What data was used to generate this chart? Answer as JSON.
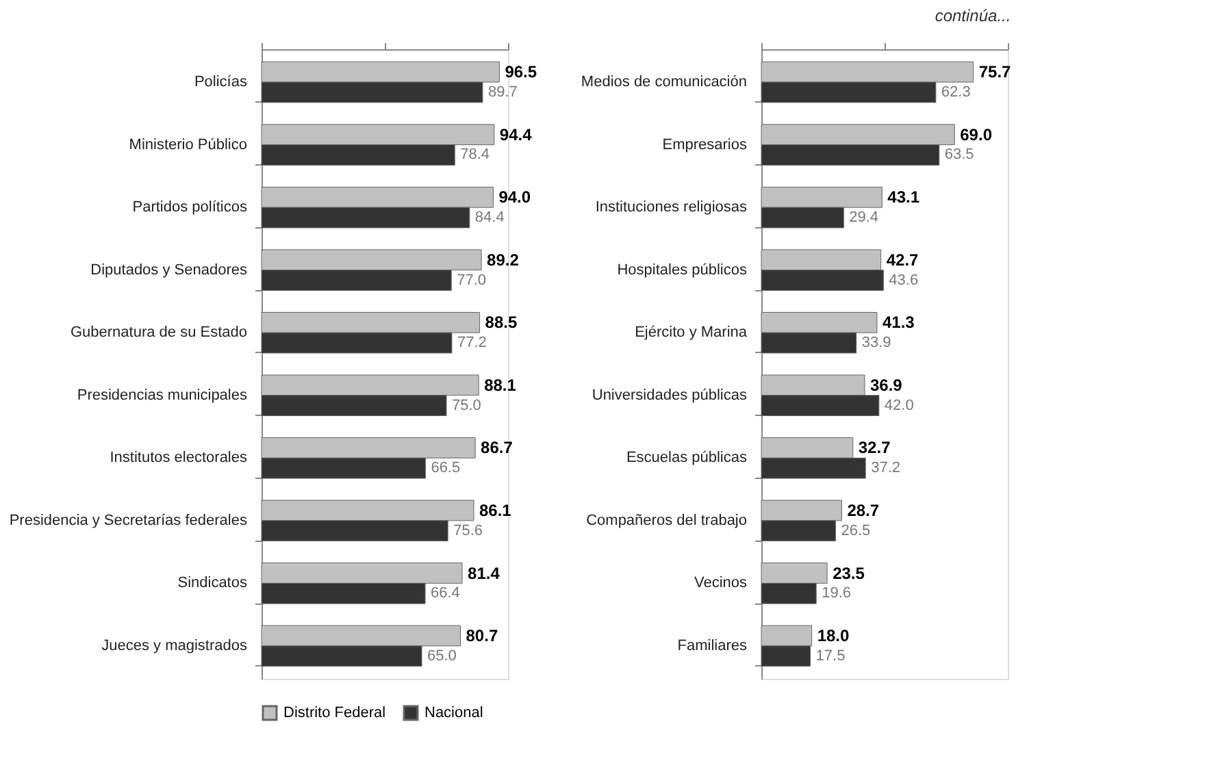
{
  "chart_data": [
    {
      "type": "bar",
      "orientation": "horizontal",
      "categories": [
        "Policías",
        "Ministerio Público",
        "Partidos políticos",
        "Diputados y Senadores",
        "Gubernatura de su Estado",
        "Presidencias municipales",
        "Institutos electorales",
        "Presidencia y Secretarías federales",
        "Sindicatos",
        "Jueces y magistrados"
      ],
      "series": [
        {
          "name": "Distrito Federal",
          "color": "#c0c0c0",
          "values": [
            96.5,
            94.4,
            94.0,
            89.2,
            88.5,
            88.1,
            86.7,
            86.1,
            81.4,
            80.7
          ],
          "value_labels": [
            "96.5",
            "94.4",
            "94.0",
            "89.2",
            "88.5",
            "88.1",
            "86.7",
            "86.1",
            "81.4",
            "80.7"
          ]
        },
        {
          "name": "Nacional",
          "color": "#333333",
          "values": [
            89.7,
            78.4,
            84.4,
            77.0,
            77.2,
            75.0,
            66.5,
            75.6,
            66.4,
            65.0
          ],
          "value_labels": [
            "89.7",
            "78.4",
            "84.4",
            "77.0",
            "77.2",
            "75.0",
            "66.5",
            "75.6",
            "66.4",
            "65.0"
          ]
        }
      ],
      "xlim": [
        0,
        100
      ],
      "tick_labels": "y",
      "legend": "bottom"
    },
    {
      "type": "bar",
      "orientation": "horizontal",
      "categories": [
        "Medios de comunicación",
        "Empresarios",
        "Instituciones religiosas",
        "Hospitales públicos",
        "Ejército y Marina",
        "Universidades públicas",
        "Escuelas públicas",
        "Compañeros del trabajo",
        "Vecinos",
        "Familiares"
      ],
      "series": [
        {
          "name": "Distrito Federal",
          "color": "#c0c0c0",
          "values": [
            75.7,
            69.0,
            43.1,
            42.7,
            41.3,
            36.9,
            32.7,
            28.7,
            23.5,
            18.0
          ],
          "value_labels": [
            "75.7",
            "69.0",
            "43.1",
            "42.7",
            "41.3",
            "36.9",
            "32.7",
            "28.7",
            "23.5",
            "18.0"
          ]
        },
        {
          "name": "Nacional",
          "color": "#333333",
          "values": [
            62.3,
            63.5,
            29.4,
            43.6,
            33.9,
            42.0,
            37.2,
            26.5,
            19.6,
            17.5
          ],
          "value_labels": [
            "62.3",
            "63.5",
            "29.4",
            "43.6",
            "33.9",
            "42.0",
            "37.2",
            "26.5",
            "19.6",
            "17.5"
          ]
        }
      ],
      "xlim": [
        0,
        88
      ],
      "tick_labels": "y",
      "legend": "bottom",
      "annotations": [
        "continúa..."
      ]
    }
  ]
}
